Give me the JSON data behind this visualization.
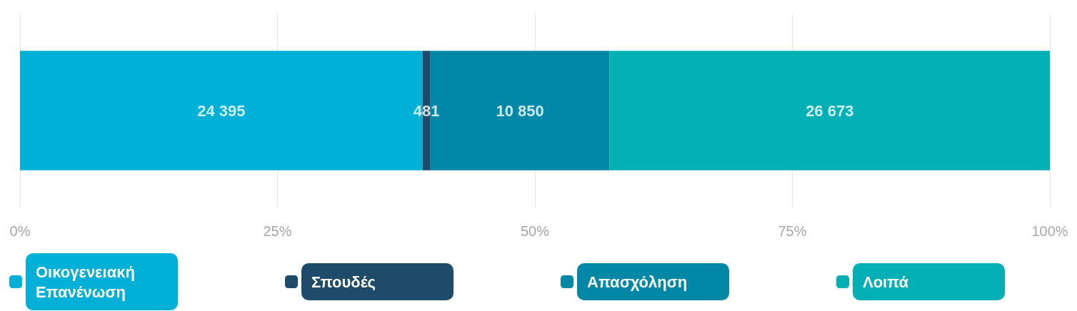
{
  "chart_data": {
    "type": "bar",
    "orientation": "horizontal",
    "stacked": true,
    "categories": [
      null
    ],
    "series": [
      {
        "name": "Οικογενειακή Επανένωση",
        "color": "#00b0d6",
        "values": [
          39.09
        ]
      },
      {
        "name": "Σπουδές",
        "color": "#1d4b69",
        "values": [
          0.77
        ]
      },
      {
        "name": "Απασχόληση",
        "color": "#0088a6",
        "values": [
          17.39
        ]
      },
      {
        "name": "Λοιπά",
        "color": "#00b0b5",
        "values": [
          42.75
        ]
      }
    ],
    "annotations": [
      "24 395",
      "481",
      "10 850",
      "26 673"
    ],
    "xlim": [
      0,
      100
    ],
    "xticks": [
      {
        "value": 0,
        "label": "0%"
      },
      {
        "value": 25,
        "label": "25%"
      },
      {
        "value": 50,
        "label": "50%"
      },
      {
        "value": 75,
        "label": "75%"
      },
      {
        "value": 100,
        "label": "100%"
      }
    ],
    "grid": "x",
    "legend": "bottom"
  }
}
